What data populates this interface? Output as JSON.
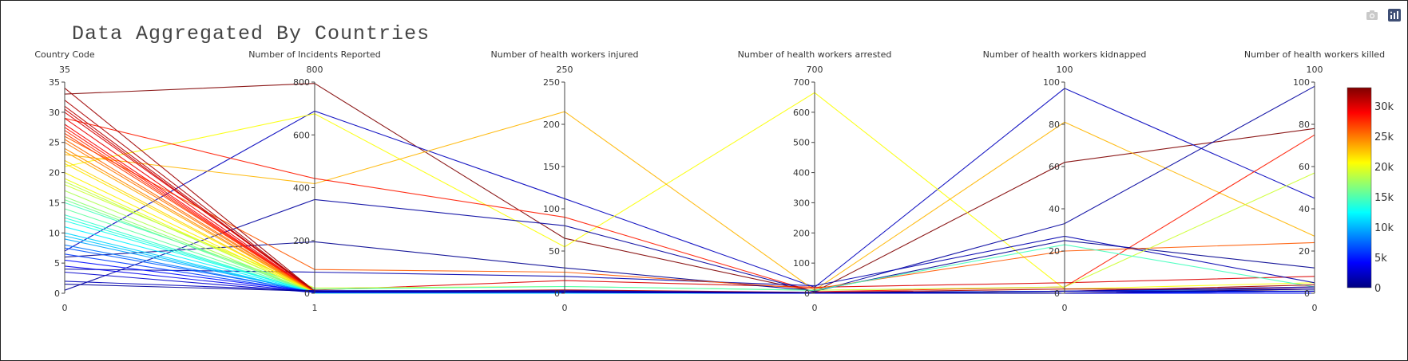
{
  "title": "Data Aggregated By Countries",
  "modebar": {
    "icons": [
      "camera-icon",
      "plotly-logo-icon"
    ]
  },
  "colors": {
    "axis": "#444444",
    "text": "#333333",
    "colorscale": [
      "#000080",
      "#0000ff",
      "#0080ff",
      "#00ffff",
      "#80ff80",
      "#ffff00",
      "#ff8000",
      "#ff0000",
      "#800000"
    ]
  },
  "chart_data": {
    "type": "parcoords",
    "colorbar": {
      "range": [
        0,
        33000
      ],
      "ticks": [
        {
          "value": 0,
          "label": "0"
        },
        {
          "value": 5000,
          "label": "5k"
        },
        {
          "value": 10000,
          "label": "10k"
        },
        {
          "value": 15000,
          "label": "15k"
        },
        {
          "value": 20000,
          "label": "20k"
        },
        {
          "value": 25000,
          "label": "25k"
        },
        {
          "value": 30000,
          "label": "30k"
        }
      ]
    },
    "dimensions": [
      {
        "label": "Country Code",
        "range": [
          0,
          35
        ],
        "top_label": "35",
        "bottom_label": "0",
        "ticks": [
          0,
          5,
          10,
          15,
          20,
          25,
          30,
          35
        ]
      },
      {
        "label": "Number of Incidents Reported",
        "range": [
          0,
          800
        ],
        "top_label": "800",
        "bottom_label": "1",
        "ticks": [
          0,
          200,
          400,
          600,
          800
        ]
      },
      {
        "label": "Number of health workers injured",
        "range": [
          0,
          250
        ],
        "top_label": "250",
        "bottom_label": "0",
        "ticks": [
          0,
          50,
          100,
          150,
          200,
          250
        ]
      },
      {
        "label": "Number of health workers arrested",
        "range": [
          0,
          700
        ],
        "top_label": "700",
        "bottom_label": "0",
        "ticks": [
          0,
          100,
          200,
          300,
          400,
          500,
          600,
          700
        ]
      },
      {
        "label": "Number of health workers kidnapped",
        "range": [
          0,
          100
        ],
        "top_label": "100",
        "bottom_label": "0",
        "ticks": [
          0,
          20,
          40,
          60,
          80,
          100
        ]
      },
      {
        "label": "Number of health workers killed",
        "range": [
          0,
          100
        ],
        "top_label": "100",
        "bottom_label": "0",
        "ticks": [
          0,
          20,
          40,
          60,
          80,
          100
        ]
      }
    ],
    "lines": [
      {
        "color_value": 33000,
        "values": [
          33,
          795,
          65,
          5,
          62,
          78
        ]
      },
      {
        "color_value": 2000,
        "values": [
          7,
          690,
          112,
          20,
          97,
          45
        ]
      },
      {
        "color_value": 20500,
        "values": [
          21,
          680,
          55,
          665,
          2,
          5
        ]
      },
      {
        "color_value": 23000,
        "values": [
          23,
          415,
          215,
          10,
          81,
          27
        ]
      },
      {
        "color_value": 28000,
        "values": [
          29,
          435,
          90,
          5,
          3,
          75
        ]
      },
      {
        "color_value": 1000,
        "values": [
          0.5,
          355,
          80,
          5,
          33,
          98
        ]
      },
      {
        "color_value": 30000,
        "values": [
          30,
          12,
          15,
          20,
          5,
          8
        ]
      },
      {
        "color_value": 500,
        "values": [
          6,
          195,
          30,
          8,
          25,
          12
        ]
      },
      {
        "color_value": 1500,
        "values": [
          4,
          80,
          20,
          25,
          27,
          5
        ]
      },
      {
        "color_value": 26000,
        "values": [
          26,
          90,
          25,
          15,
          20,
          24
        ]
      },
      {
        "color_value": 19000,
        "values": [
          18,
          20,
          8,
          10,
          3,
          57
        ]
      },
      {
        "color_value": 14500,
        "values": [
          15,
          15,
          8,
          10,
          23,
          3
        ]
      },
      {
        "color_value": 32000,
        "values": [
          34,
          8,
          3,
          2,
          1,
          4
        ]
      },
      {
        "color_value": 31500,
        "values": [
          32,
          6,
          4,
          3,
          2,
          2
        ]
      },
      {
        "color_value": 31000,
        "values": [
          31,
          5,
          3,
          2,
          1,
          3
        ]
      },
      {
        "color_value": 30500,
        "values": [
          30.5,
          5,
          2,
          1,
          1,
          2
        ]
      },
      {
        "color_value": 29500,
        "values": [
          29,
          4,
          2,
          1,
          0,
          1
        ]
      },
      {
        "color_value": 29000,
        "values": [
          28,
          4,
          3,
          2,
          1,
          1
        ]
      },
      {
        "color_value": 28500,
        "values": [
          27.5,
          3,
          2,
          1,
          0,
          2
        ]
      },
      {
        "color_value": 27500,
        "values": [
          27,
          3,
          1,
          1,
          0,
          1
        ]
      },
      {
        "color_value": 27000,
        "values": [
          26.5,
          5,
          3,
          2,
          1,
          2
        ]
      },
      {
        "color_value": 25500,
        "values": [
          25.5,
          4,
          2,
          1,
          0,
          1
        ]
      },
      {
        "color_value": 25000,
        "values": [
          25,
          3,
          2,
          1,
          1,
          1
        ]
      },
      {
        "color_value": 24500,
        "values": [
          24,
          3,
          1,
          0,
          0,
          0
        ]
      },
      {
        "color_value": 23500,
        "values": [
          23.5,
          2,
          1,
          0,
          0,
          1
        ]
      },
      {
        "color_value": 22000,
        "values": [
          22,
          2,
          1,
          1,
          0,
          0
        ]
      },
      {
        "color_value": 21500,
        "values": [
          21.5,
          2,
          1,
          0,
          0,
          0
        ]
      },
      {
        "color_value": 21000,
        "values": [
          20,
          2,
          1,
          0,
          0,
          1
        ]
      },
      {
        "color_value": 20000,
        "values": [
          19,
          1,
          0,
          0,
          0,
          0
        ]
      },
      {
        "color_value": 18500,
        "values": [
          18.5,
          2,
          1,
          1,
          1,
          1
        ]
      },
      {
        "color_value": 18000,
        "values": [
          17,
          1,
          1,
          0,
          0,
          0
        ]
      },
      {
        "color_value": 17000,
        "values": [
          16,
          2,
          1,
          0,
          0,
          0
        ]
      },
      {
        "color_value": 16000,
        "values": [
          15.5,
          1,
          0,
          0,
          0,
          0
        ]
      },
      {
        "color_value": 15500,
        "values": [
          14,
          2,
          1,
          1,
          0,
          1
        ]
      },
      {
        "color_value": 14000,
        "values": [
          13,
          1,
          1,
          0,
          0,
          0
        ]
      },
      {
        "color_value": 13500,
        "values": [
          12.5,
          2,
          0,
          0,
          0,
          0
        ]
      },
      {
        "color_value": 13000,
        "values": [
          12,
          3,
          2,
          1,
          1,
          1
        ]
      },
      {
        "color_value": 12000,
        "values": [
          11,
          2,
          1,
          0,
          0,
          0
        ]
      },
      {
        "color_value": 11000,
        "values": [
          10,
          1,
          0,
          0,
          0,
          0
        ]
      },
      {
        "color_value": 10500,
        "values": [
          9.5,
          2,
          1,
          1,
          0,
          0
        ]
      },
      {
        "color_value": 9500,
        "values": [
          9,
          3,
          1,
          0,
          0,
          1
        ]
      },
      {
        "color_value": 8000,
        "values": [
          8,
          2,
          1,
          0,
          0,
          0
        ]
      },
      {
        "color_value": 7000,
        "values": [
          7.5,
          4,
          2,
          1,
          1,
          2
        ]
      },
      {
        "color_value": 6000,
        "values": [
          6.5,
          3,
          1,
          0,
          0,
          1
        ]
      },
      {
        "color_value": 4500,
        "values": [
          5.5,
          5,
          2,
          1,
          0,
          1
        ]
      },
      {
        "color_value": 3500,
        "values": [
          4.5,
          4,
          1,
          0,
          0,
          0
        ]
      },
      {
        "color_value": 2500,
        "values": [
          3.5,
          3,
          1,
          1,
          1,
          1
        ]
      },
      {
        "color_value": 1800,
        "values": [
          2,
          10,
          3,
          2,
          1,
          3
        ]
      },
      {
        "color_value": 800,
        "values": [
          1.5,
          8,
          2,
          1,
          0,
          2
        ]
      }
    ]
  }
}
